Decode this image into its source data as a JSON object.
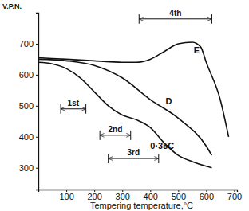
{
  "chart_data": {
    "type": "line",
    "y_label": "V.P.N.",
    "x_label": "Tempering temperature,°C",
    "xlim": [
      0,
      710
    ],
    "xticks": [
      100,
      200,
      300,
      400,
      500,
      600,
      700
    ],
    "ylim": [
      230,
      800
    ],
    "yticks": [
      300,
      400,
      500,
      600,
      700
    ],
    "color": "#111111",
    "series": [
      {
        "name": "E",
        "label_at": [
          555,
          670
        ],
        "x": [
          0,
          100,
          200,
          300,
          350,
          400,
          450,
          500,
          550,
          580,
          600,
          650,
          680
        ],
        "values": [
          655,
          650,
          645,
          640,
          640,
          650,
          675,
          700,
          705,
          690,
          640,
          520,
          400
        ]
      },
      {
        "name": "D",
        "label_at": [
          455,
          505
        ],
        "x": [
          0,
          100,
          200,
          300,
          400,
          500,
          600,
          620
        ],
        "values": [
          650,
          645,
          630,
          590,
          520,
          460,
          370,
          340
        ]
      },
      {
        "name": "0·35C",
        "label_at": [
          400,
          360
        ],
        "x": [
          0,
          50,
          100,
          150,
          200,
          250,
          300,
          350,
          400,
          450,
          500,
          550,
          600,
          620
        ],
        "values": [
          640,
          635,
          620,
          590,
          545,
          500,
          470,
          455,
          430,
          380,
          340,
          320,
          305,
          300
        ]
      }
    ],
    "annotations": [
      {
        "text": "1st",
        "x": [
          80,
          170
        ],
        "y": 490
      },
      {
        "text": "2nd",
        "x": [
          220,
          330
        ],
        "y": 405
      },
      {
        "text": "3rd",
        "x": [
          250,
          430
        ],
        "y": 330
      },
      {
        "text": "4th",
        "x": [
          360,
          620
        ],
        "y": 780
      }
    ]
  }
}
